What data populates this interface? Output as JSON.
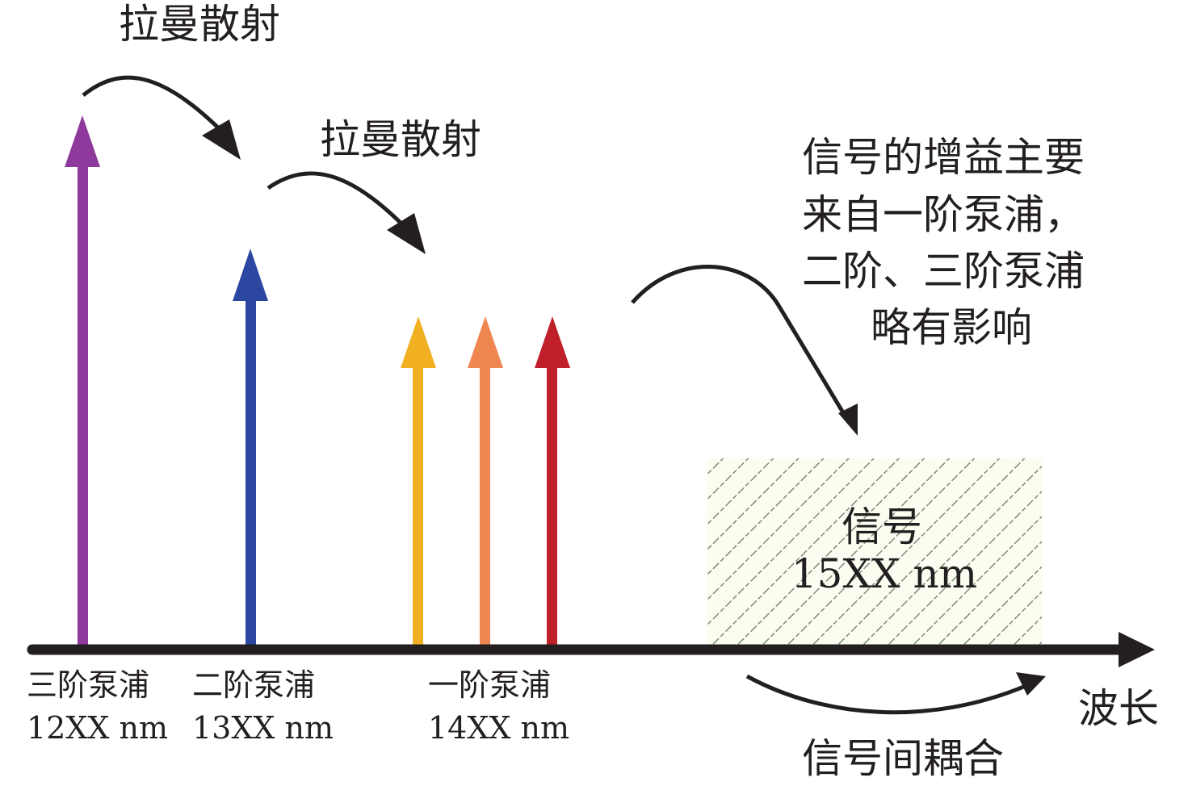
{
  "annotations": {
    "raman_top": "拉曼散射",
    "raman_mid": "拉曼散射",
    "gain_note": [
      "信号的增益主要",
      "来自一阶泵浦，",
      "二阶、三阶泵浦",
      "略有影响"
    ],
    "coupling": "信号间耦合",
    "axis_label": "波长"
  },
  "pumps": [
    {
      "name": "三阶泵浦",
      "wavelength": "12XX nm",
      "color": "#8e3a9c"
    },
    {
      "name": "二阶泵浦",
      "wavelength": "13XX nm",
      "color": "#2b47a0"
    },
    {
      "name": "一阶泵浦",
      "wavelength": "14XX nm",
      "colors": [
        "#f1b022",
        "#ef8650",
        "#c0202a"
      ]
    }
  ],
  "signal": {
    "name": "信号",
    "wavelength": "15XX nm",
    "hatch_color": "#7f8a7a",
    "fill": "#fbfdf0"
  }
}
